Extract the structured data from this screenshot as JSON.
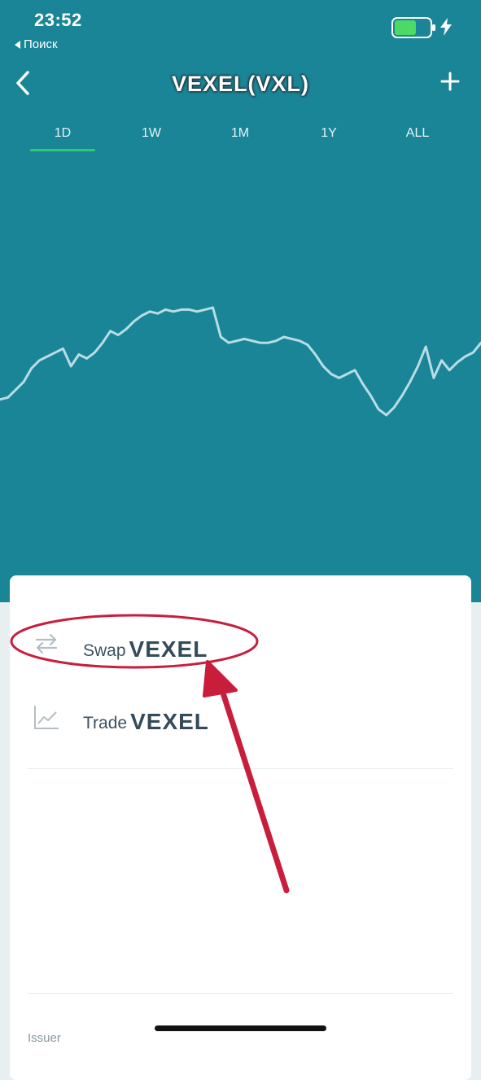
{
  "status_bar": {
    "time": "23:52",
    "back_label": "Поиск"
  },
  "header": {
    "title": "VEXEL(VXL)"
  },
  "tabs": [
    {
      "label": "1D",
      "active": true
    },
    {
      "label": "1W",
      "active": false
    },
    {
      "label": "1M",
      "active": false
    },
    {
      "label": "1Y",
      "active": false
    },
    {
      "label": "ALL",
      "active": false
    }
  ],
  "chart_data": {
    "type": "line",
    "series": [
      {
        "values": [
          33,
          34,
          38,
          42,
          49,
          53,
          55,
          57,
          59,
          50,
          56,
          54,
          57,
          62,
          68,
          66,
          69,
          73,
          76,
          78,
          77,
          79,
          78,
          79,
          79,
          78,
          79,
          80,
          65,
          62,
          63,
          64,
          63,
          62,
          62,
          63,
          65,
          64,
          63,
          61,
          56,
          50,
          46,
          44,
          46,
          48,
          41,
          35,
          28,
          25,
          29,
          35,
          42,
          50,
          60,
          44,
          53,
          48,
          52,
          55,
          57,
          62
        ]
      }
    ],
    "line_color": "#b8dde3",
    "axes_visible": false
  },
  "actions": [
    {
      "verb": "Swap",
      "token": "VEXEL",
      "icon": "swap-arrows-icon"
    },
    {
      "verb": "Trade",
      "token": "VEXEL",
      "icon": "trend-chart-icon"
    }
  ],
  "issuer": {
    "label": "Issuer"
  },
  "colors": {
    "header_bg": "#1a8597",
    "active_tab_underline": "#2ecc71",
    "annotation_red": "#c81e3c",
    "battery_green": "#4cd964"
  }
}
